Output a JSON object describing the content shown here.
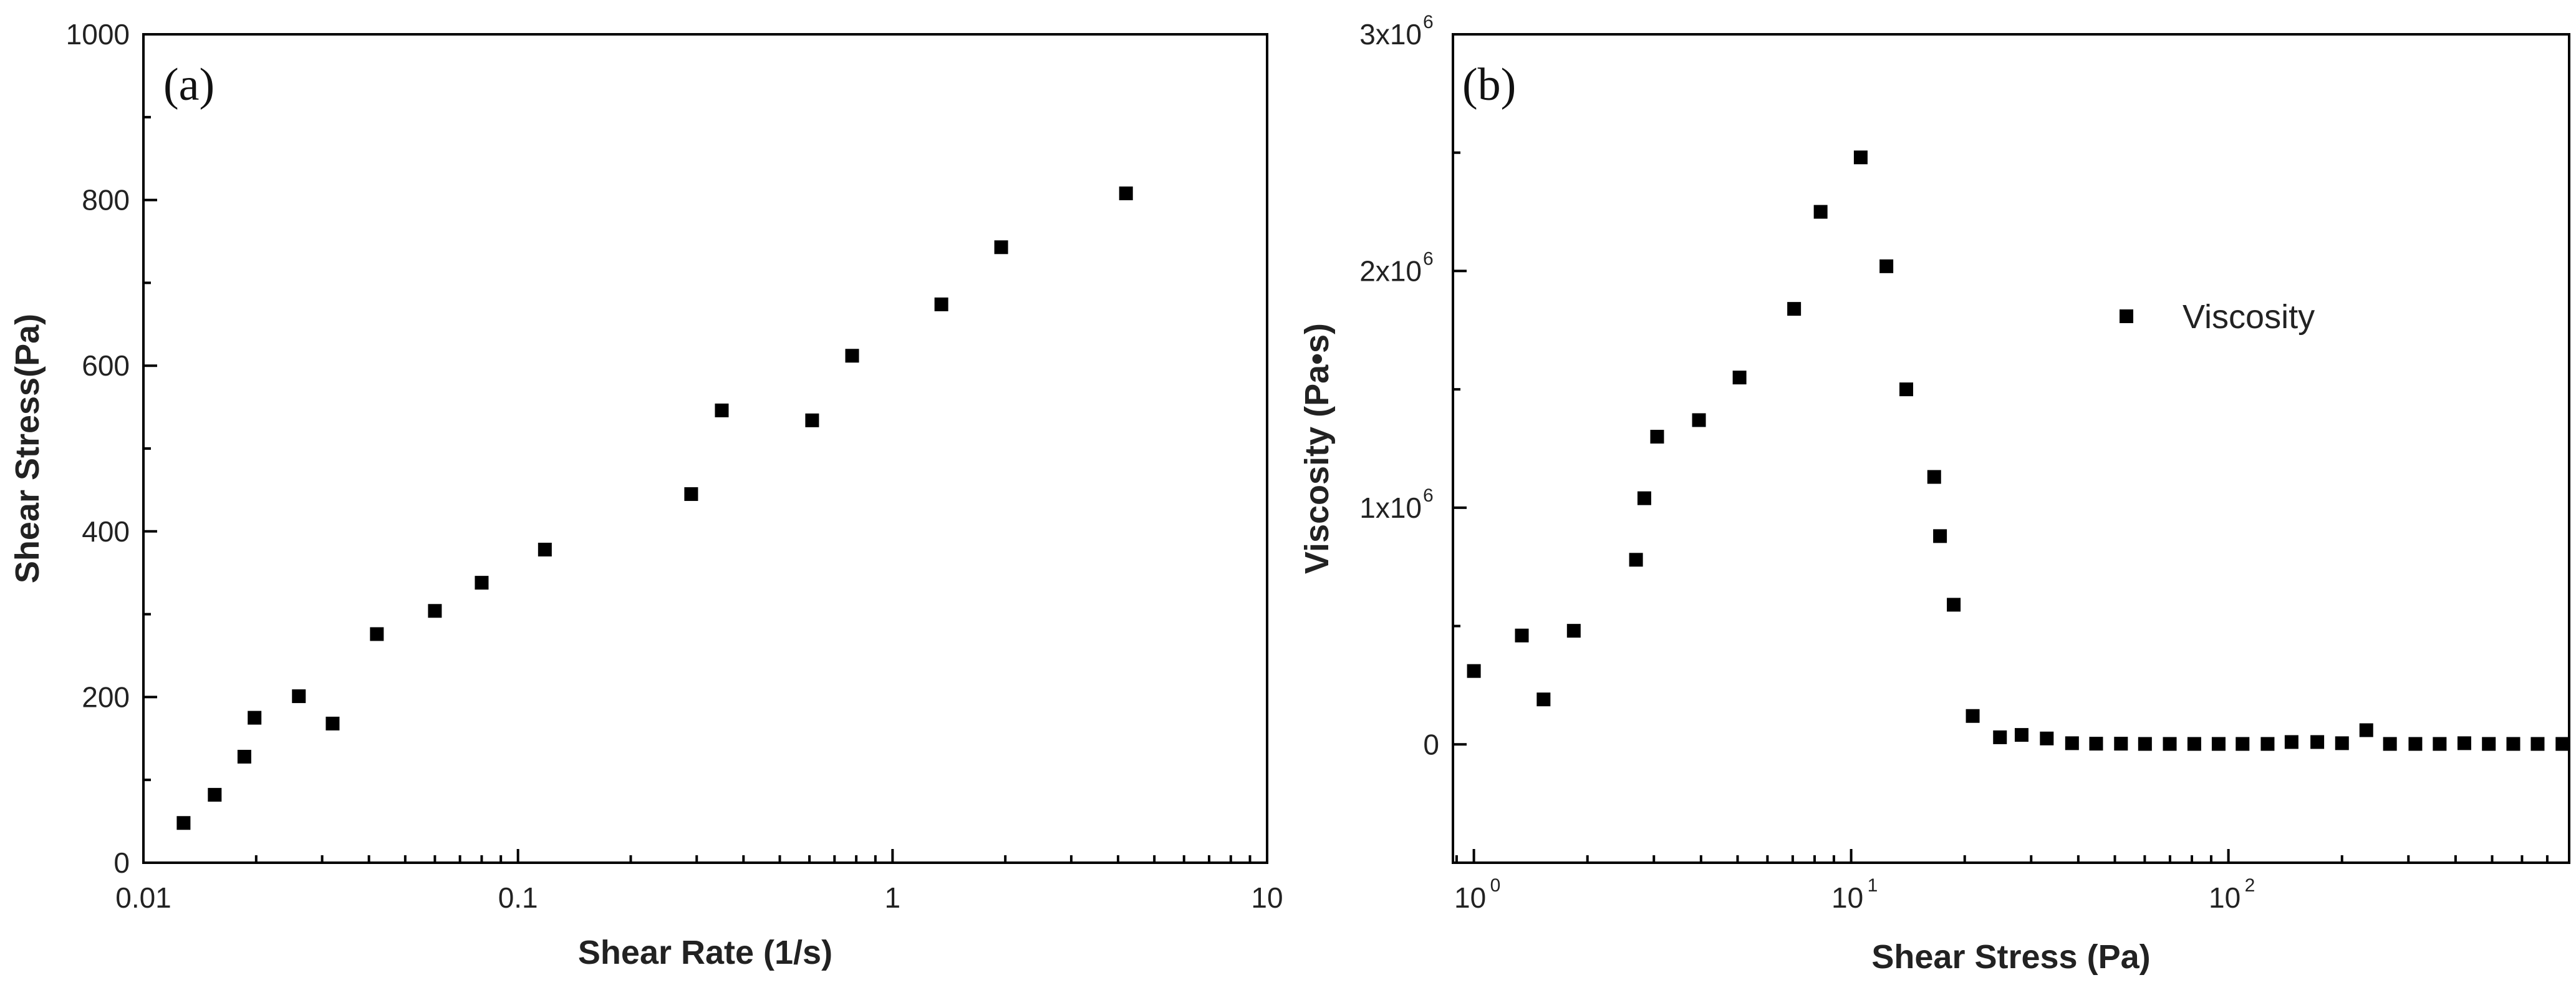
{
  "chart_data": [
    {
      "panel": "(a)",
      "type": "scatter",
      "title": "",
      "xlabel": "Shear Rate (1/s)",
      "ylabel": "Shear Stress(Pa)",
      "xscale": "log",
      "xlim": [
        0.01,
        10
      ],
      "ylim": [
        0,
        1000
      ],
      "xticks": [
        0.01,
        0.1,
        1,
        10
      ],
      "xtick_labels": [
        "0.01",
        "0.1",
        "1",
        "10"
      ],
      "yticks": [
        0,
        200,
        400,
        600,
        800,
        1000
      ],
      "ytick_labels": [
        "0",
        "200",
        "400",
        "600",
        "800",
        "1000"
      ],
      "grid": false,
      "marker": "square",
      "series": [
        {
          "x": [
            0.0128,
            0.0155,
            0.0186,
            0.0198,
            0.026,
            0.032,
            0.042,
            0.06,
            0.08,
            0.118,
            0.29,
            0.35,
            0.61,
            0.78,
            1.35,
            1.95,
            4.2
          ],
          "y": [
            48,
            82,
            128,
            175,
            201,
            168,
            276,
            304,
            338,
            378,
            445,
            546,
            534,
            612,
            674,
            743,
            808
          ]
        }
      ]
    },
    {
      "panel": "(b)",
      "type": "scatter",
      "title": "",
      "xlabel": "Shear Stress (Pa)",
      "ylabel": "Viscosity (Pa•s)",
      "xscale": "log",
      "xlim": [
        0.88,
        800
      ],
      "ylim": [
        -500000,
        3000000
      ],
      "xticks": [
        1,
        10,
        100
      ],
      "xtick_labels": [
        {
          "base": "10",
          "exp": "0"
        },
        {
          "base": "10",
          "exp": "1"
        },
        {
          "base": "10",
          "exp": "2"
        }
      ],
      "yticks": [
        0,
        1000000,
        2000000,
        3000000
      ],
      "ytick_labels": [
        {
          "base": "0",
          "exp": ""
        },
        {
          "base": "1x10",
          "exp": "6"
        },
        {
          "base": "2x10",
          "exp": "6"
        },
        {
          "base": "3x10",
          "exp": "6"
        }
      ],
      "grid": false,
      "legend_position": "top-right",
      "series": [
        {
          "name": "Viscosity",
          "marker": "square",
          "x": [
            1.0,
            1.34,
            1.53,
            1.84,
            2.69,
            2.83,
            3.06,
            3.95,
            5.06,
            7.06,
            8.3,
            10.6,
            12.4,
            14.0,
            16.6,
            17.2,
            18.7,
            21.0,
            24.8,
            28.3,
            33.0,
            38.5,
            44.6,
            51.9,
            60.1,
            69.9,
            81.2,
            94.2,
            109,
            127,
            147,
            172,
            200,
            232,
            268,
            313,
            363,
            422,
            490,
            569,
            660,
            768
          ],
          "y": [
            310000,
            460000,
            190000,
            480000,
            780000,
            1040000,
            1300000,
            1370000,
            1550000,
            1840000,
            2250000,
            2480000,
            2020000,
            1500000,
            1130000,
            880000,
            590000,
            120000,
            30000,
            40000,
            25000,
            5000,
            3000,
            3000,
            2000,
            2000,
            2000,
            2000,
            2000,
            2000,
            10000,
            10000,
            5000,
            60000,
            2000,
            2000,
            2000,
            5000,
            2000,
            2000,
            2000,
            2000
          ]
        }
      ]
    }
  ]
}
